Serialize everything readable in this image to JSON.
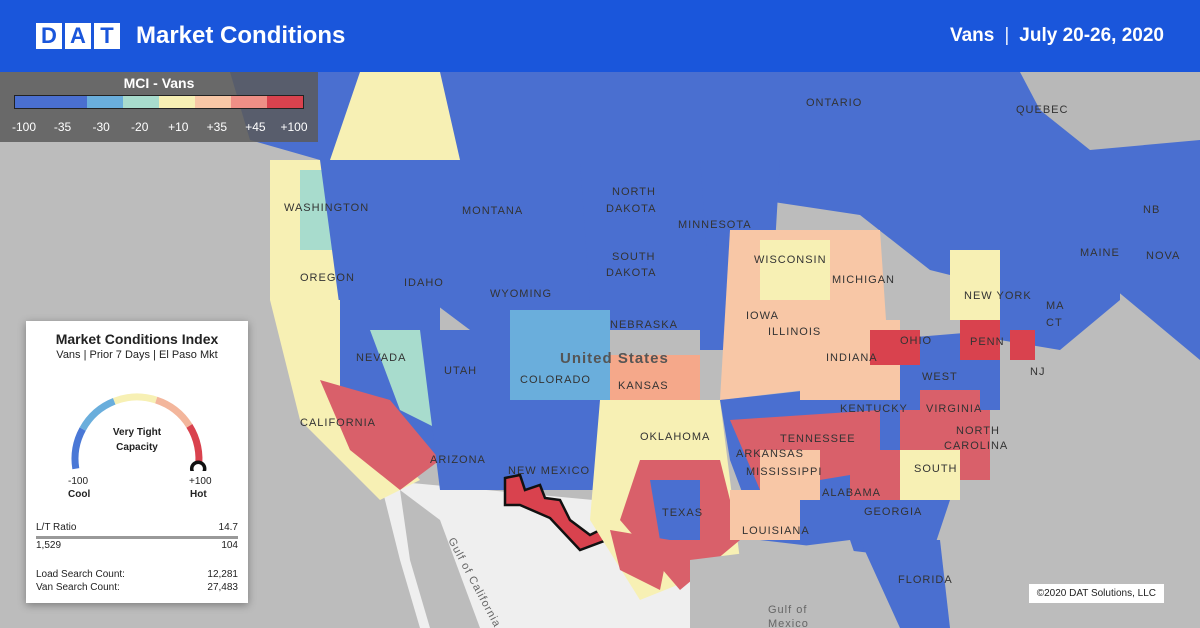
{
  "header": {
    "logo_letters": [
      "D",
      "A",
      "T"
    ],
    "title": "Market Conditions",
    "equipment": "Vans",
    "date_range": "July 20-26, 2020",
    "bg_color": "#1a56db"
  },
  "legend": {
    "title": "MCI - Vans",
    "colors": [
      "#4a6fd0",
      "#4a6fd0",
      "#6aaedc",
      "#a8dccd",
      "#f7f0b4",
      "#f8c7a6",
      "#ef8f86",
      "#d9424e"
    ],
    "ticks": [
      "-100",
      "-35",
      "-30",
      "-20",
      "+10",
      "+35",
      "+45",
      "+100"
    ]
  },
  "panel": {
    "title": "Market Conditions Index",
    "subtitle": "Vans | Prior 7 Days | El Paso Mkt",
    "gauge_value": "Very Tight",
    "gauge_value2": "Capacity",
    "gauge_level": 100,
    "min_value": "-100",
    "min_label": "Cool",
    "max_value": "+100",
    "max_label": "Hot",
    "lt_ratio_label": "L/T Ratio",
    "lt_ratio_value": "14.7",
    "loads": "1,529",
    "trucks": "104",
    "load_search_label": "Load Search Count:",
    "load_search_value": "12,281",
    "van_search_label": "Van Search Count:",
    "van_search_value": "27,483"
  },
  "map_labels": {
    "ontario": "ONTARIO",
    "quebec": "QUEBEC",
    "washington": "WASHINGTON",
    "montana": "MONTANA",
    "north_dakota_1": "NORTH",
    "north_dakota_2": "DAKOTA",
    "south_dakota_1": "SOUTH",
    "south_dakota_2": "DAKOTA",
    "minnesota": "MINNESOTA",
    "oregon": "OREGON",
    "idaho": "IDAHO",
    "wyoming": "WYOMING",
    "nebraska": "NEBRASKA",
    "iowa": "IOWA",
    "wisconsin": "WISCONSIN",
    "michigan": "MICHIGAN",
    "new_york": "NEW YORK",
    "nevada": "NEVADA",
    "utah": "UTAH",
    "colorado": "COLORADO",
    "kansas": "KANSAS",
    "united_states": "United States",
    "illinois": "ILLINOIS",
    "indiana": "INDIANA",
    "ohio": "OHIO",
    "penn": "PENN",
    "nj": "NJ",
    "west": "WEST",
    "virginia": "VIRGINIA",
    "kentucky": "KENTUCKY",
    "california": "CALIFORNIA",
    "arizona": "ARIZONA",
    "new_mexico": "NEW MEXICO",
    "oklahoma": "OKLAHOMA",
    "arkansas": "ARKANSAS",
    "tennessee": "TENNESSEE",
    "north_carolina_1": "NORTH",
    "north_carolina_2": "CAROLINA",
    "south_carolina": "SOUTH",
    "mississippi": "MISSISSIPPI",
    "alabama": "ALABAMA",
    "georgia": "GEORGIA",
    "texas": "TEXAS",
    "louisiana": "LOUISIANA",
    "florida": "FLORIDA",
    "maine": "MAINE",
    "nova": "NOVA",
    "nb": "NB",
    "ma": "MA",
    "ct": "CT",
    "gulf_mexico_1": "Gulf of",
    "gulf_mexico_2": "Mexico",
    "gulf_california": "Gulf of California"
  },
  "copyright": "©2020 DAT Solutions, LLC"
}
